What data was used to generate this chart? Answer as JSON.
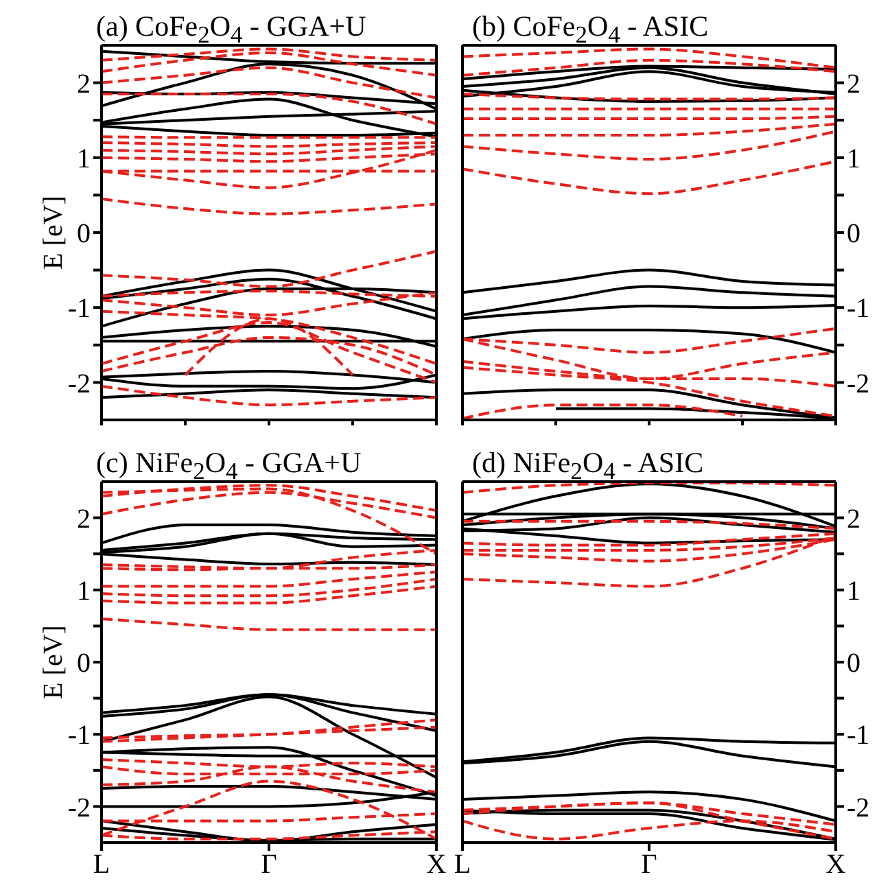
{
  "chart_data": [
    {
      "type": "line",
      "title": "(a)  CoFe$_{2}$O$_{4}$ - GGA+U",
      "ylabel": "E [eV]",
      "categories": [
        null,
        null,
        null,
        null,
        null
      ],
      "ylim": [
        -2.5,
        2.5
      ],
      "yticks": [
        -2,
        {
          "value": -1.5,
          "label": null
        },
        -1,
        {
          "value": -0.5,
          "label": null
        },
        0,
        {
          "value": 0.5,
          "label": null
        },
        1,
        {
          "value": 1.5,
          "label": null
        },
        2
      ],
      "tick_labels": "y",
      "marker": "none",
      "series": [
        {
          "color": "#000000",
          "line_style": "solid",
          "values": [
            2.42,
            2.35,
            2.28,
            2.26,
            2.26
          ]
        },
        {
          "color": "#000000",
          "line_style": "solid",
          "values": [
            1.69,
            2.0,
            2.25,
            2.1,
            1.65
          ]
        },
        {
          "color": "#000000",
          "line_style": "solid",
          "values": [
            1.87,
            1.85,
            1.87,
            1.8,
            1.72
          ]
        },
        {
          "color": "#000000",
          "line_style": "solid",
          "values": [
            1.47,
            1.65,
            1.78,
            1.5,
            1.28
          ]
        },
        {
          "color": "#000000",
          "line_style": "solid",
          "values": [
            1.42,
            1.35,
            1.3,
            1.3,
            1.33
          ]
        },
        {
          "color": "#000000",
          "line_style": "solid",
          "values": [
            1.45,
            1.5,
            1.55,
            1.58,
            1.62
          ]
        },
        {
          "color": "#000000",
          "line_style": "solid",
          "values": [
            -0.85,
            -0.65,
            -0.5,
            -0.75,
            -1.05
          ]
        },
        {
          "color": "#000000",
          "line_style": "solid",
          "values": [
            -0.88,
            -0.75,
            -0.62,
            -0.85,
            -1.15
          ]
        },
        {
          "color": "#000000",
          "line_style": "solid",
          "values": [
            -1.25,
            -0.95,
            -0.75,
            -0.75,
            -0.8
          ]
        },
        {
          "color": "#000000",
          "line_style": "solid",
          "values": [
            -1.4,
            -1.3,
            -1.25,
            -1.3,
            -1.52
          ]
        },
        {
          "color": "#000000",
          "line_style": "solid",
          "values": [
            -1.45,
            -1.45,
            -1.45,
            -1.45,
            -1.45
          ]
        },
        {
          "color": "#000000",
          "line_style": "solid",
          "values": [
            -1.93,
            -1.88,
            -1.85,
            -1.9,
            -2.0
          ]
        },
        {
          "color": "#000000",
          "line_style": "solid",
          "values": [
            -1.95,
            -2.05,
            -2.05,
            -2.08,
            -1.9
          ]
        },
        {
          "color": "#000000",
          "line_style": "solid",
          "values": [
            -2.2,
            -2.15,
            -2.1,
            -2.15,
            -2.2
          ]
        },
        {
          "color": "#e8211c",
          "line_style": "dashed",
          "values": [
            0.45,
            0.32,
            0.25,
            0.3,
            0.38
          ]
        },
        {
          "color": "#e8211c",
          "line_style": "dashed",
          "values": [
            0.82,
            0.7,
            0.6,
            0.8,
            1.1
          ]
        },
        {
          "color": "#e8211c",
          "line_style": "dashed",
          "values": [
            0.82,
            0.82,
            0.82,
            0.82,
            0.82
          ]
        },
        {
          "color": "#e8211c",
          "line_style": "dashed",
          "values": [
            1.0,
            0.98,
            0.95,
            1.0,
            1.05
          ]
        },
        {
          "color": "#e8211c",
          "line_style": "dashed",
          "values": [
            1.1,
            1.08,
            1.05,
            1.1,
            1.15
          ]
        },
        {
          "color": "#e8211c",
          "line_style": "dashed",
          "values": [
            1.2,
            1.18,
            1.15,
            1.18,
            1.2
          ]
        },
        {
          "color": "#e8211c",
          "line_style": "dashed",
          "values": [
            1.28,
            1.27,
            1.27,
            1.27,
            1.27
          ]
        },
        {
          "color": "#e8211c",
          "line_style": "dashed",
          "values": [
            1.85,
            1.85,
            1.85,
            1.75,
            1.45
          ]
        },
        {
          "color": "#e8211c",
          "line_style": "dashed",
          "values": [
            2.0,
            2.1,
            2.2,
            2.0,
            1.8
          ]
        },
        {
          "color": "#e8211c",
          "line_style": "dashed",
          "values": [
            2.15,
            2.3,
            2.4,
            2.25,
            2.1
          ]
        },
        {
          "color": "#e8211c",
          "line_style": "dashed",
          "values": [
            2.3,
            2.38,
            2.45,
            2.35,
            2.3
          ]
        },
        {
          "color": "#e8211c",
          "line_style": "dashed",
          "values": [
            -0.57,
            -0.63,
            -0.72,
            -0.5,
            -0.25
          ]
        },
        {
          "color": "#e8211c",
          "line_style": "dashed",
          "values": [
            -0.85,
            -0.8,
            -0.78,
            -0.82,
            -0.85
          ]
        },
        {
          "color": "#e8211c",
          "line_style": "dashed",
          "values": [
            -0.9,
            -1.0,
            -1.1,
            -0.95,
            -0.8
          ]
        },
        {
          "color": "#e8211c",
          "line_style": "dashed",
          "values": [
            -1.05,
            -1.1,
            -1.15,
            -1.4,
            -1.75
          ]
        },
        {
          "color": "#e8211c",
          "line_style": "dashed",
          "values": [
            -1.75,
            -1.45,
            -1.2,
            -1.6,
            -2.0
          ]
        },
        {
          "color": "#e8211c",
          "line_style": "dashed",
          "values": [
            -1.85,
            -1.6,
            -1.4,
            -1.5,
            -1.9
          ]
        },
        {
          "color": "#e8211c",
          "line_style": "dashed",
          "values": [
            -2.05,
            -2.2,
            -2.3,
            -2.25,
            -2.2
          ]
        },
        {
          "color": "#e8211c",
          "line_style": "dashed",
          "values": [
            null,
            -1.9,
            -1.15,
            -1.9,
            null
          ]
        }
      ]
    },
    {
      "type": "line",
      "title": "(b)  CoFe$_{2}$O$_{4}$ - ASIC",
      "categories": [
        null,
        null,
        null,
        null,
        null
      ],
      "ylim": [
        -2.5,
        2.5
      ],
      "yticks": [
        -2,
        {
          "value": -1.5,
          "label": null
        },
        -1,
        {
          "value": -0.5,
          "label": null
        },
        0,
        {
          "value": 0.5,
          "label": null
        },
        1,
        {
          "value": 1.5,
          "label": null
        },
        2
      ],
      "tick_labels": "y",
      "marker": "none",
      "series": [
        {
          "color": "#000000",
          "line_style": "solid",
          "values": [
            2.05,
            2.15,
            2.22,
            2.2,
            2.18
          ]
        },
        {
          "color": "#000000",
          "line_style": "solid",
          "values": [
            1.95,
            2.05,
            2.2,
            2.0,
            1.85
          ]
        },
        {
          "color": "#000000",
          "line_style": "solid",
          "values": [
            1.82,
            1.95,
            2.15,
            1.95,
            1.87
          ]
        },
        {
          "color": "#000000",
          "line_style": "solid",
          "values": [
            1.9,
            1.8,
            1.75,
            1.76,
            1.8
          ]
        },
        {
          "color": "#000000",
          "line_style": "solid",
          "values": [
            -0.8,
            -0.65,
            -0.5,
            -0.65,
            -0.7
          ]
        },
        {
          "color": "#000000",
          "line_style": "solid",
          "values": [
            -1.1,
            -0.9,
            -0.72,
            -0.8,
            -0.85
          ]
        },
        {
          "color": "#000000",
          "line_style": "solid",
          "values": [
            -1.15,
            -1.05,
            -0.98,
            -1.0,
            -0.97
          ]
        },
        {
          "color": "#000000",
          "line_style": "solid",
          "values": [
            -1.42,
            -1.3,
            -1.3,
            -1.35,
            -1.6
          ]
        },
        {
          "color": "#000000",
          "line_style": "solid",
          "values": [
            -2.15,
            -2.1,
            -2.1,
            -2.3,
            -2.47
          ]
        },
        {
          "color": "#000000",
          "line_style": "solid",
          "values": [
            null,
            -2.35,
            -2.35,
            -2.4,
            -2.48
          ]
        },
        {
          "color": "#e8211c",
          "line_style": "dashed",
          "values": [
            0.85,
            0.65,
            0.52,
            0.7,
            0.95
          ]
        },
        {
          "color": "#e8211c",
          "line_style": "dashed",
          "values": [
            1.15,
            1.05,
            0.98,
            1.1,
            1.35
          ]
        },
        {
          "color": "#e8211c",
          "line_style": "dashed",
          "values": [
            1.3,
            1.3,
            1.3,
            1.35,
            1.45
          ]
        },
        {
          "color": "#e8211c",
          "line_style": "dashed",
          "values": [
            1.52,
            1.52,
            1.52,
            1.52,
            1.55
          ]
        },
        {
          "color": "#e8211c",
          "line_style": "dashed",
          "values": [
            1.65,
            1.65,
            1.65,
            1.65,
            1.65
          ]
        },
        {
          "color": "#e8211c",
          "line_style": "dashed",
          "values": [
            1.85,
            1.8,
            1.78,
            1.78,
            1.8
          ]
        },
        {
          "color": "#e8211c",
          "line_style": "dashed",
          "values": [
            2.1,
            2.2,
            2.3,
            2.25,
            2.15
          ]
        },
        {
          "color": "#e8211c",
          "line_style": "dashed",
          "values": [
            2.35,
            2.4,
            2.45,
            2.35,
            2.2
          ]
        },
        {
          "color": "#e8211c",
          "line_style": "dashed",
          "values": [
            -1.42,
            -1.5,
            -1.6,
            -1.45,
            -1.28
          ]
        },
        {
          "color": "#e8211c",
          "line_style": "dashed",
          "values": [
            -1.42,
            -1.7,
            -1.95,
            -1.75,
            -1.6
          ]
        },
        {
          "color": "#e8211c",
          "line_style": "dashed",
          "values": [
            -1.72,
            -1.85,
            -1.95,
            -1.95,
            -2.05
          ]
        },
        {
          "color": "#e8211c",
          "line_style": "dashed",
          "values": [
            -1.8,
            -1.9,
            -2.0,
            -2.25,
            -2.45
          ]
        },
        {
          "color": "#e8211c",
          "line_style": "dashed",
          "values": [
            -2.48,
            -2.3,
            -2.3,
            -2.45,
            null
          ]
        }
      ]
    },
    {
      "type": "line",
      "title": "(c)  NiFe$_{2}$O$_{4}$ - GGA+U",
      "ylabel": "E [eV]",
      "categories": [
        "L",
        null,
        "Γ",
        null,
        "X"
      ],
      "ylim": [
        -2.5,
        2.5
      ],
      "yticks": [
        -2,
        {
          "value": -1.5,
          "label": null
        },
        -1,
        {
          "value": -0.5,
          "label": null
        },
        0,
        {
          "value": 0.5,
          "label": null
        },
        1,
        {
          "value": 1.5,
          "label": null
        },
        2
      ],
      "marker": "none",
      "series": [
        {
          "color": "#000000",
          "line_style": "solid",
          "values": [
            1.65,
            1.9,
            1.9,
            1.8,
            1.75
          ]
        },
        {
          "color": "#000000",
          "line_style": "solid",
          "values": [
            1.55,
            1.65,
            1.78,
            1.72,
            1.7
          ]
        },
        {
          "color": "#000000",
          "line_style": "solid",
          "values": [
            1.52,
            1.6,
            1.78,
            1.6,
            1.62
          ]
        },
        {
          "color": "#000000",
          "line_style": "solid",
          "values": [
            1.5,
            1.42,
            1.36,
            1.38,
            1.35
          ]
        },
        {
          "color": "#000000",
          "line_style": "solid",
          "values": [
            -0.7,
            -0.6,
            -0.45,
            -0.6,
            -0.72
          ]
        },
        {
          "color": "#000000",
          "line_style": "solid",
          "values": [
            -0.75,
            -0.65,
            -0.45,
            -0.7,
            -0.95
          ]
        },
        {
          "color": "#000000",
          "line_style": "solid",
          "values": [
            -1.1,
            -0.8,
            -0.48,
            -1.0,
            -1.6
          ]
        },
        {
          "color": "#000000",
          "line_style": "solid",
          "values": [
            -1.25,
            -1.2,
            -1.18,
            -1.5,
            -1.85
          ]
        },
        {
          "color": "#000000",
          "line_style": "solid",
          "values": [
            -1.25,
            -1.28,
            -1.3,
            -1.3,
            -1.3
          ]
        },
        {
          "color": "#000000",
          "line_style": "solid",
          "values": [
            -1.75,
            -1.72,
            -1.72,
            -1.8,
            -1.9
          ]
        },
        {
          "color": "#000000",
          "line_style": "solid",
          "values": [
            -2.0,
            -2.0,
            -2.0,
            -1.95,
            -1.8
          ]
        },
        {
          "color": "#000000",
          "line_style": "solid",
          "values": [
            -2.2,
            -2.35,
            -2.48,
            -2.35,
            -2.25
          ]
        },
        {
          "color": "#000000",
          "line_style": "solid",
          "values": [
            -2.3,
            -2.4,
            -2.47,
            -2.45,
            -2.45
          ]
        },
        {
          "color": "#e8211c",
          "line_style": "dashed",
          "values": [
            0.6,
            0.52,
            0.45,
            0.45,
            0.45
          ]
        },
        {
          "color": "#e8211c",
          "line_style": "dashed",
          "values": [
            0.85,
            0.82,
            0.82,
            0.92,
            1.05
          ]
        },
        {
          "color": "#e8211c",
          "line_style": "dashed",
          "values": [
            0.95,
            0.92,
            0.92,
            1.0,
            1.15
          ]
        },
        {
          "color": "#e8211c",
          "line_style": "dashed",
          "values": [
            1.05,
            1.05,
            1.05,
            1.15,
            1.25
          ]
        },
        {
          "color": "#e8211c",
          "line_style": "dashed",
          "values": [
            1.3,
            1.28,
            1.3,
            1.3,
            1.35
          ]
        },
        {
          "color": "#e8211c",
          "line_style": "dashed",
          "values": [
            1.35,
            1.32,
            1.3,
            1.45,
            1.55
          ]
        },
        {
          "color": "#e8211c",
          "line_style": "dashed",
          "values": [
            2.05,
            2.25,
            2.35,
            2.2,
            2.0
          ]
        },
        {
          "color": "#e8211c",
          "line_style": "dashed",
          "values": [
            2.3,
            2.4,
            2.45,
            2.3,
            2.1
          ]
        },
        {
          "color": "#e8211c",
          "line_style": "dashed",
          "values": [
            2.35,
            2.38,
            2.4,
            2.1,
            1.5
          ]
        },
        {
          "color": "#e8211c",
          "line_style": "dashed",
          "values": [
            -1.05,
            -1.02,
            -1.0,
            -0.9,
            -0.8
          ]
        },
        {
          "color": "#e8211c",
          "line_style": "dashed",
          "values": [
            -1.1,
            -1.05,
            -1.0,
            -0.95,
            -0.9
          ]
        },
        {
          "color": "#e8211c",
          "line_style": "dashed",
          "values": [
            -1.35,
            -1.4,
            -1.45,
            -1.4,
            -1.45
          ]
        },
        {
          "color": "#e8211c",
          "line_style": "dashed",
          "values": [
            -1.45,
            -1.55,
            -1.55,
            -1.55,
            -1.5
          ]
        },
        {
          "color": "#e8211c",
          "line_style": "dashed",
          "values": [
            -1.7,
            -1.65,
            -1.45,
            -1.65,
            -1.8
          ]
        },
        {
          "color": "#e8211c",
          "line_style": "dashed",
          "values": [
            -2.4,
            -2.0,
            -1.65,
            -1.9,
            -2.45
          ]
        },
        {
          "color": "#e8211c",
          "line_style": "dashed",
          "values": [
            -2.2,
            -2.2,
            -2.2,
            -2.15,
            -2.1
          ]
        },
        {
          "color": "#e8211c",
          "line_style": "dashed",
          "values": [
            -2.4,
            -2.45,
            -2.45,
            -2.4,
            -2.35
          ]
        }
      ]
    },
    {
      "type": "line",
      "title": "(d) NiFe$_{2}$O$_{4}$ - ASIC",
      "categories": [
        "L",
        null,
        "Γ",
        null,
        "X"
      ],
      "ylim": [
        -2.5,
        2.5
      ],
      "yticks": [
        -2,
        {
          "value": -1.5,
          "label": null
        },
        -1,
        {
          "value": -0.5,
          "label": null
        },
        0,
        {
          "value": 0.5,
          "label": null
        },
        1,
        {
          "value": 1.5,
          "label": null
        },
        2
      ],
      "marker": "none",
      "series": [
        {
          "color": "#000000",
          "line_style": "solid",
          "values": [
            2.05,
            2.05,
            2.05,
            2.05,
            2.05
          ]
        },
        {
          "color": "#000000",
          "line_style": "solid",
          "values": [
            1.95,
            2.3,
            2.47,
            2.3,
            1.88
          ]
        },
        {
          "color": "#000000",
          "line_style": "solid",
          "values": [
            1.9,
            2.0,
            2.05,
            2.0,
            1.85
          ]
        },
        {
          "color": "#000000",
          "line_style": "solid",
          "values": [
            1.85,
            1.75,
            1.65,
            1.68,
            1.7
          ]
        },
        {
          "color": "#000000",
          "line_style": "solid",
          "values": [
            1.82,
            1.85,
            2.0,
            1.9,
            1.8
          ]
        },
        {
          "color": "#000000",
          "line_style": "solid",
          "values": [
            -1.38,
            -1.25,
            -1.05,
            -1.1,
            -1.12
          ]
        },
        {
          "color": "#000000",
          "line_style": "solid",
          "values": [
            -1.4,
            -1.3,
            -1.1,
            -1.3,
            -1.45
          ]
        },
        {
          "color": "#000000",
          "line_style": "solid",
          "values": [
            -1.9,
            -1.85,
            -1.8,
            -1.9,
            -2.2
          ]
        },
        {
          "color": "#000000",
          "line_style": "solid",
          "values": [
            -2.1,
            -2.05,
            -2.05,
            -2.2,
            -2.45
          ]
        },
        {
          "color": "#000000",
          "line_style": "solid",
          "values": [
            -2.05,
            -2.1,
            -2.1,
            -2.3,
            -2.46
          ]
        },
        {
          "color": "#e8211c",
          "line_style": "dashed",
          "values": [
            1.15,
            1.1,
            1.05,
            1.3,
            1.75
          ]
        },
        {
          "color": "#e8211c",
          "line_style": "dashed",
          "values": [
            1.5,
            1.45,
            1.4,
            1.5,
            1.7
          ]
        },
        {
          "color": "#e8211c",
          "line_style": "dashed",
          "values": [
            1.55,
            1.55,
            1.55,
            1.6,
            1.72
          ]
        },
        {
          "color": "#e8211c",
          "line_style": "dashed",
          "values": [
            1.65,
            1.62,
            1.62,
            1.7,
            1.78
          ]
        },
        {
          "color": "#e8211c",
          "line_style": "dashed",
          "values": [
            1.95,
            1.95,
            1.95,
            1.92,
            1.85
          ]
        },
        {
          "color": "#e8211c",
          "line_style": "dashed",
          "values": [
            2.35,
            2.45,
            2.48,
            2.48,
            2.45
          ]
        },
        {
          "color": "#e8211c",
          "line_style": "dashed",
          "values": [
            -2.1,
            -2.0,
            -1.95,
            -2.1,
            -2.25
          ]
        },
        {
          "color": "#e8211c",
          "line_style": "dashed",
          "values": [
            -2.05,
            -2.0,
            -1.95,
            -2.2,
            -2.45
          ]
        },
        {
          "color": "#e8211c",
          "line_style": "dashed",
          "values": [
            -2.2,
            -2.45,
            -2.3,
            -2.2,
            -2.35
          ]
        }
      ]
    }
  ]
}
